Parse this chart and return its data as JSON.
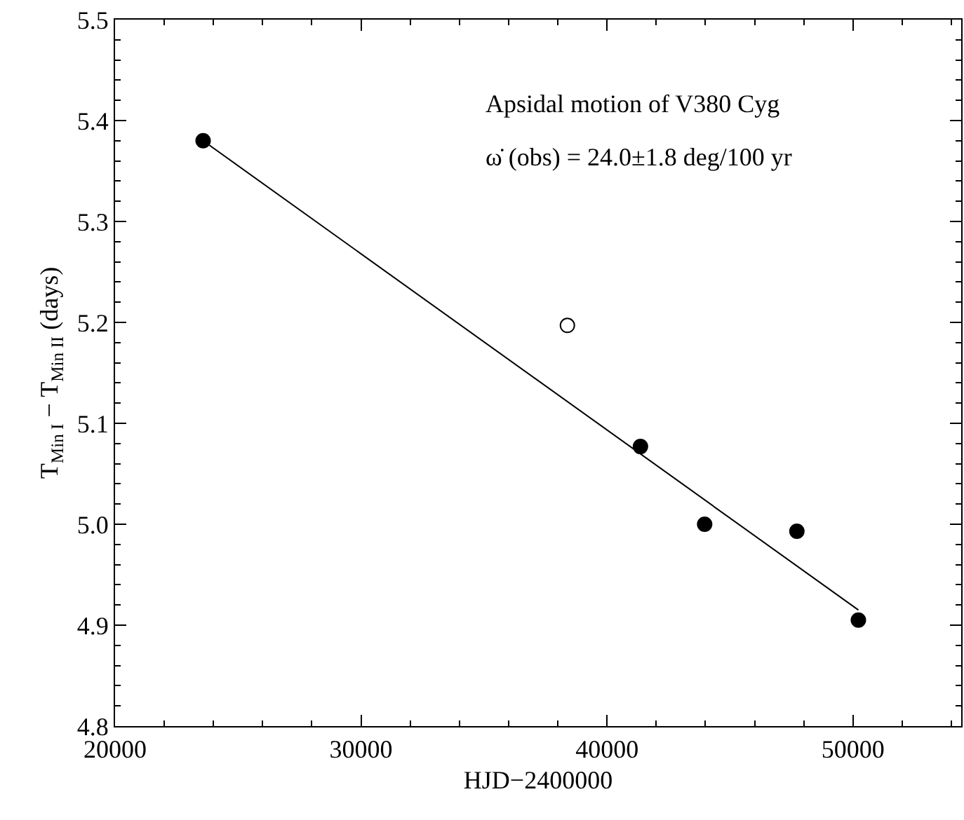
{
  "chart_data": {
    "type": "scatter",
    "xlabel": "HJD−2400000",
    "ylabel": "T$_{Min I}$ − T$_{Min II}$ (days)",
    "annotations": [
      "Apsidal motion of V380 Cyg",
      "ω̇ (obs) = 24.0±1.8 deg/100 yr"
    ],
    "series": [
      {
        "color": "#000000",
        "marker": "circle",
        "x": [
          23580,
          41360,
          43970,
          47720,
          50220
        ],
        "values": [
          5.38,
          5.077,
          5.0,
          4.993,
          4.905
        ]
      },
      {
        "color": "#ffffff",
        "marker": "circle",
        "x": [
          38390
        ],
        "values": [
          5.197
        ]
      },
      {
        "type": "line",
        "color": "#000000",
        "marker": "none",
        "x": [
          23580,
          50220
        ],
        "values": [
          5.38,
          4.915
        ]
      }
    ],
    "xlim": [
      20000,
      54400
    ],
    "xticks": [
      20000,
      30000,
      40000,
      50000
    ],
    "ylim": [
      4.8,
      5.5
    ],
    "yticks": [
      4.8,
      4.9,
      {
        "value": 5,
        "label": "5.0"
      },
      5.1,
      5.2,
      5.3,
      5.4,
      5.5
    ]
  }
}
